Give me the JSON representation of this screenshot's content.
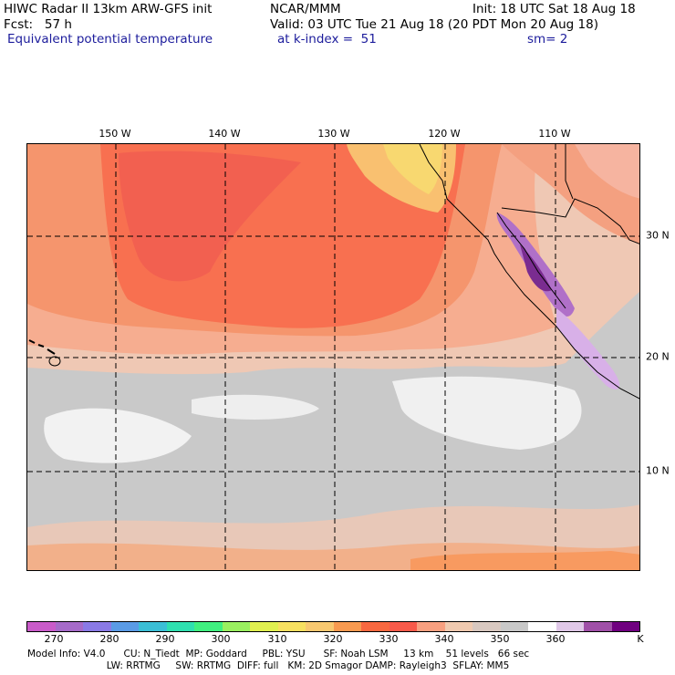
{
  "header": {
    "line1_left": "HIWC Radar II 13km ARW-GFS init",
    "line1_mid": "NCAR/MMM",
    "line1_right": "Init: 18 UTC Sat 18 Aug 18",
    "line2_left": "Fcst:   57 h",
    "line2_right": "Valid: 03 UTC Tue 21 Aug 18 (20 PDT Mon 20 Aug 18)",
    "line3_left": "Equivalent potential temperature",
    "line3_mid": "at k-index =  51",
    "line3_right": "sm= 2"
  },
  "map": {
    "lon_labels": [
      "150 W",
      "140 W",
      "130 W",
      "120 W",
      "110 W"
    ],
    "lat_labels": [
      "30 N",
      "20 N",
      "10 N"
    ]
  },
  "colorbar": {
    "colors": [
      "#c95bc9",
      "#a66bc9",
      "#8a7ae6",
      "#5a9be6",
      "#3bbfd6",
      "#2fe0b0",
      "#40f080",
      "#9af060",
      "#e0f050",
      "#f7e060",
      "#f8c870",
      "#f89a50",
      "#f86840",
      "#f85a4a",
      "#f8a080",
      "#f0cab0",
      "#d8c8c0",
      "#c8c8c8",
      "#ffffff",
      "#e0c8e8",
      "#a050a8",
      "#700080"
    ],
    "ticks": [
      "270",
      "280",
      "290",
      "300",
      "310",
      "320",
      "330",
      "340",
      "350",
      "360"
    ],
    "unit": "K"
  },
  "footer": {
    "line1": "Model Info: V4.0      CU: N_Tiedt  MP: Goddard     PBL: YSU      SF: Noah LSM     13 km    51 levels   66 sec",
    "line2": "                          LW: RRTMG     SW: RRTMG  DIFF: full   KM: 2D Smagor DAMP: Rayleigh3  SFLAY: MM5"
  }
}
